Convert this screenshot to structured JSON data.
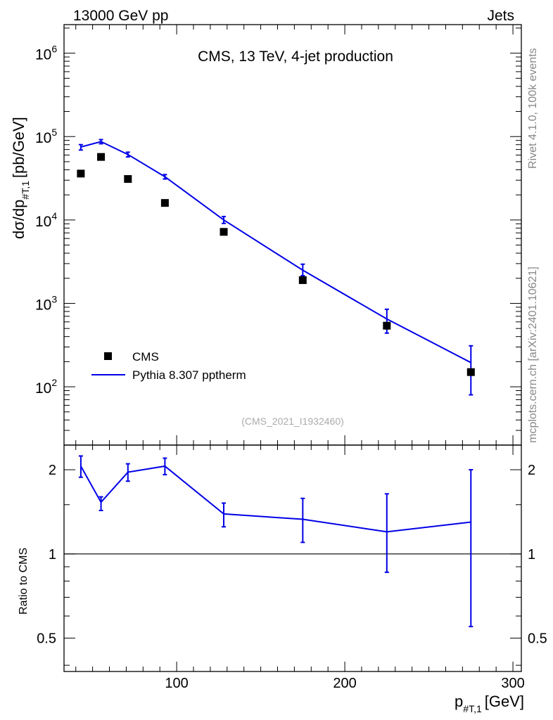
{
  "header": {
    "left": "13000 GeV pp",
    "right": "Jets"
  },
  "side_labels": {
    "rivet": "Rivet 4.1.0,  100k events",
    "mcplots": "mcplots.cern.ch [arXiv:2401.10621]"
  },
  "chart_data": [
    {
      "type": "scatter",
      "panel": "main",
      "title": "CMS, 13 TeV, 4-jet production",
      "watermark": "(CMS_2021_I1932460)",
      "ylabel": "dσ/dp",
      "ylabel_sub": "#T,1",
      "ylabel_unit": "[pb/GeV]",
      "yscale": "log",
      "ylim": [
        20,
        2200000
      ],
      "xlim": [
        33,
        305
      ],
      "x_ticks": [
        100,
        200,
        300
      ],
      "y_tick_labels": [
        {
          "base": "10",
          "exp": "2",
          "value": 100
        },
        {
          "base": "10",
          "exp": "3",
          "value": 1000
        },
        {
          "base": "10",
          "exp": "4",
          "value": 10000
        },
        {
          "base": "10",
          "exp": "5",
          "value": 100000
        },
        {
          "base": "10",
          "exp": "6",
          "value": 1000000
        }
      ],
      "legend_position": "bottom-left",
      "series": [
        {
          "name": "CMS",
          "style": "markers",
          "color": "#000000",
          "x": [
            43,
            55,
            71,
            93,
            128,
            175,
            225,
            275
          ],
          "y": [
            36000,
            57000,
            31000,
            16000,
            7200,
            1900,
            540,
            150
          ]
        },
        {
          "name": "Pythia 8.307 pptherm",
          "style": "line",
          "color": "#0000e6",
          "x": [
            43,
            55,
            71,
            93,
            128,
            175,
            225,
            275
          ],
          "y": [
            75000,
            87000,
            61000,
            33000,
            10000,
            2500,
            650,
            195
          ],
          "yerr_low": [
            69000,
            82000,
            57000,
            31000,
            9100,
            2150,
            440,
            80
          ],
          "yerr_high": [
            80000,
            92000,
            65000,
            35000,
            11000,
            2950,
            850,
            310
          ]
        }
      ]
    },
    {
      "type": "line",
      "panel": "ratio",
      "ylabel": "Ratio to CMS",
      "xlabel": "p",
      "xlabel_sub": "#T,1",
      "xlabel_unit": "[GeV]",
      "yscale": "log",
      "ylim": [
        0.38,
        2.45
      ],
      "xlim": [
        33,
        305
      ],
      "x_ticks": [
        100,
        200,
        300
      ],
      "y_ticks": [
        0.5,
        1,
        2
      ],
      "y_tick_labels": [
        "0.5",
        "1",
        "2"
      ],
      "reference_line": 1,
      "series": [
        {
          "name": "Pythia 8.307 pptherm",
          "color": "#0000e6",
          "x": [
            43,
            55,
            71,
            93,
            128,
            175,
            225,
            275
          ],
          "y": [
            2.06,
            1.53,
            1.96,
            2.06,
            1.39,
            1.33,
            1.2,
            1.3
          ],
          "yerr_low": [
            1.88,
            1.43,
            1.82,
            1.92,
            1.25,
            1.1,
            0.86,
            0.55
          ],
          "yerr_high": [
            2.24,
            1.6,
            2.1,
            2.2,
            1.52,
            1.58,
            1.64,
            2.0
          ]
        }
      ]
    }
  ]
}
